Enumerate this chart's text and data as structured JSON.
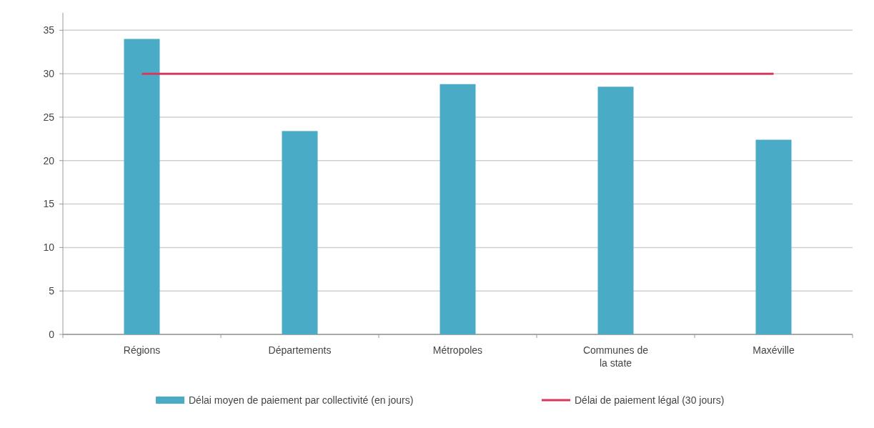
{
  "chart_data": {
    "type": "bar",
    "categories": [
      "Régions",
      "Départements",
      "Métropoles",
      "Communes de la state",
      "Maxéville"
    ],
    "series": [
      {
        "name": "Délai moyen de paiement par collectivité (en jours)",
        "color": "#4aabc6",
        "values": [
          34,
          23.4,
          28.8,
          28.5,
          22.4
        ]
      },
      {
        "name": "Délai de paiement légal (30 jours)",
        "type": "line",
        "color": "#d9385e",
        "values": [
          30,
          30,
          30,
          30,
          30
        ]
      }
    ],
    "ylim": [
      0,
      37
    ],
    "yticks": [
      0,
      5,
      10,
      15,
      20,
      25,
      30,
      35
    ],
    "grid": "y",
    "legend": "bottom"
  }
}
